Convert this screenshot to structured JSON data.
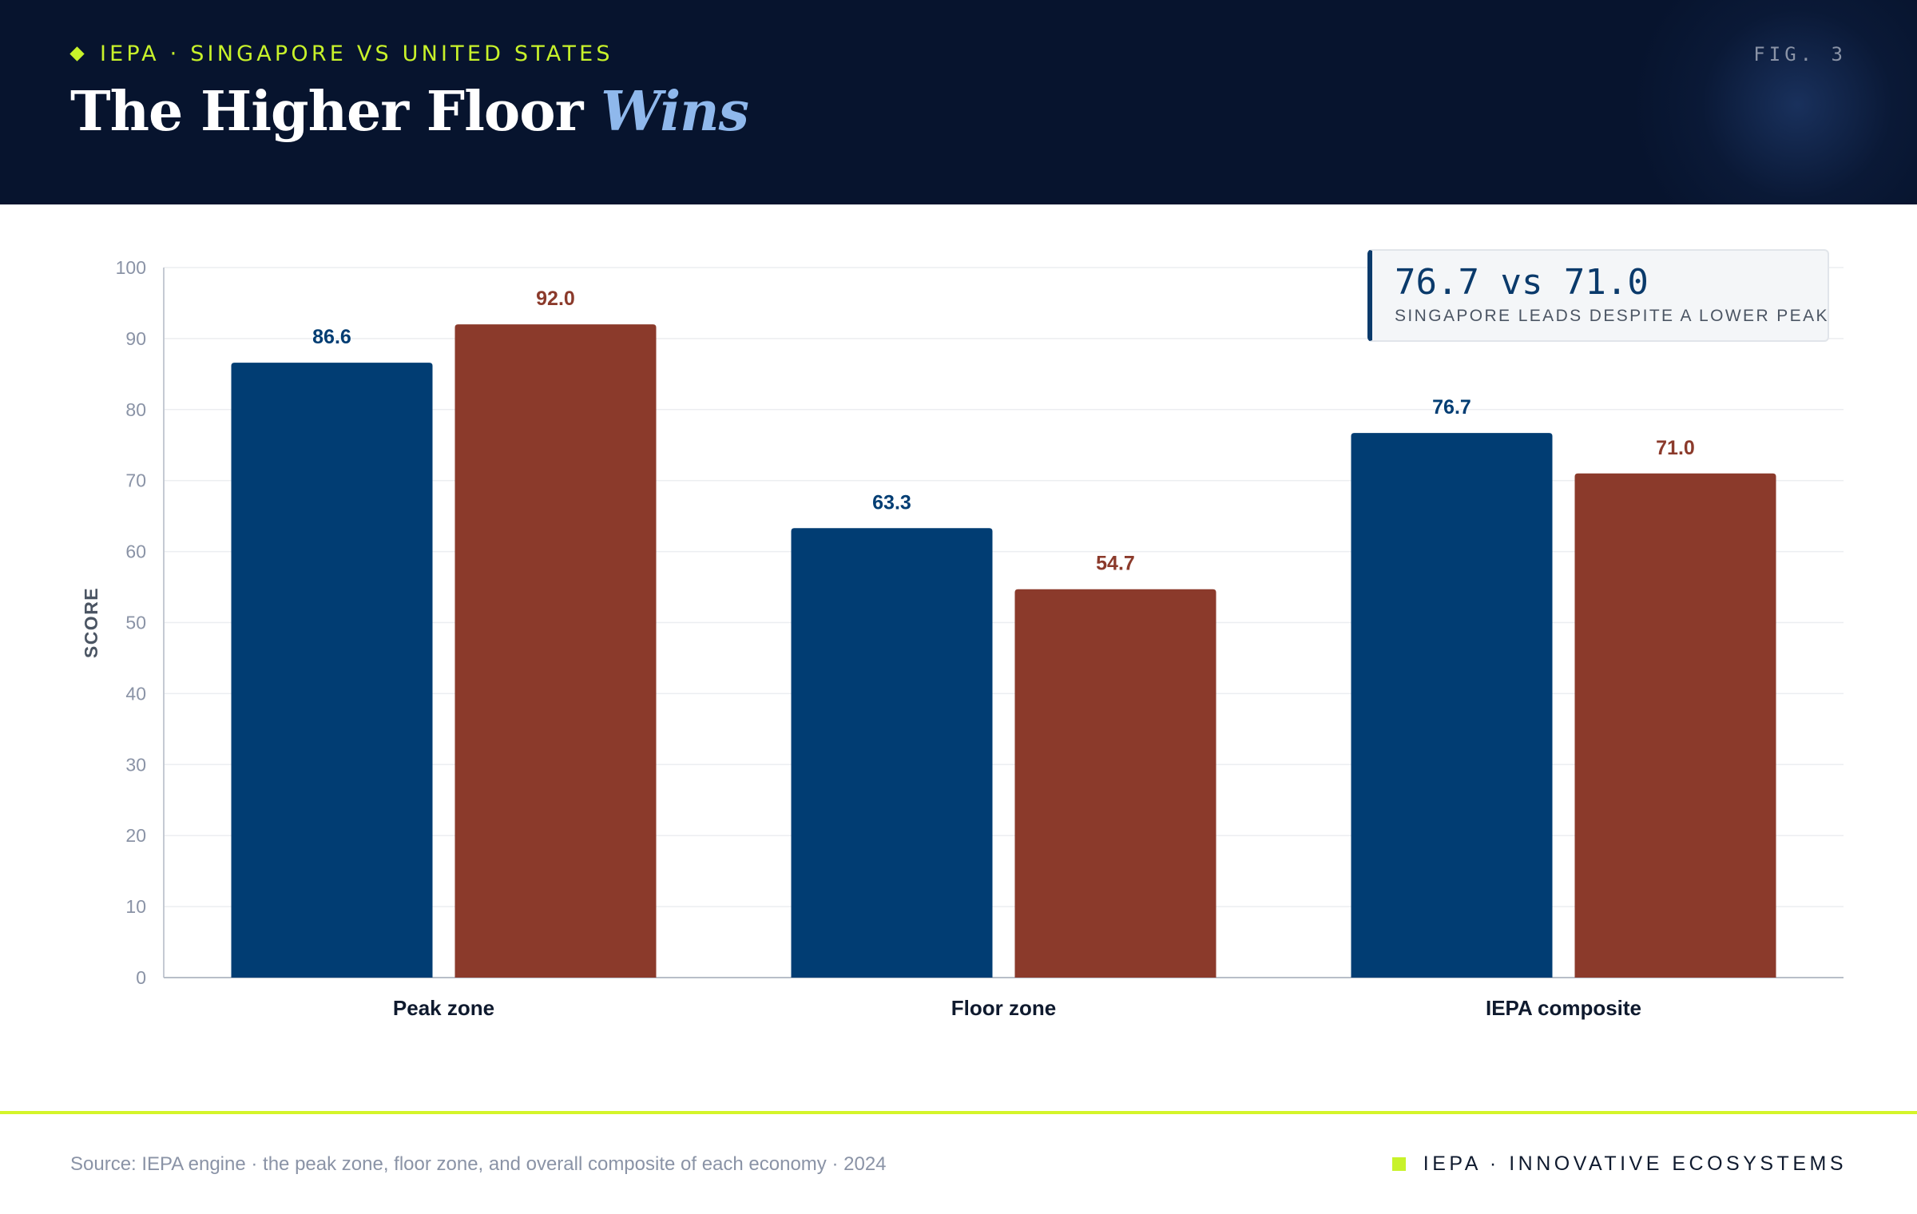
{
  "header": {
    "eyebrow": "IEPA · SINGAPORE VS UNITED STATES",
    "figure_label": "FIG. 3",
    "title_main": "The Higher Floor",
    "title_accent": "Wins"
  },
  "callout": {
    "value": "76.7 vs 71.0",
    "note": "SINGAPORE LEADS DESPITE A LOWER PEAK"
  },
  "footer": {
    "source": "Source: IEPA engine · the peak zone, floor zone, and overall composite of each economy · 2024",
    "brand": "IEPA · INNOVATIVE ECOSYSTEMS"
  },
  "colors": {
    "navy": "#013d73",
    "rust": "#8b3a2b",
    "lime": "#c8f22a",
    "header_bg": "#07142e"
  },
  "chart_data": {
    "type": "bar",
    "categories": [
      "Peak zone",
      "Floor zone",
      "IEPA composite"
    ],
    "series": [
      {
        "color": "#013d73",
        "values": [
          86.6,
          63.3,
          76.7
        ],
        "labels": [
          "86.6",
          "63.3",
          "76.7"
        ]
      },
      {
        "color": "#8b3a2b",
        "values": [
          92.0,
          54.7,
          71.0
        ],
        "labels": [
          "92.0",
          "54.7",
          "71.0"
        ]
      }
    ],
    "ylabel": "SCORE",
    "ylim": [
      0,
      100
    ],
    "yticks": [
      0,
      10,
      20,
      30,
      40,
      50,
      60,
      70,
      80,
      90,
      100
    ],
    "grid": true,
    "legend": "none"
  }
}
